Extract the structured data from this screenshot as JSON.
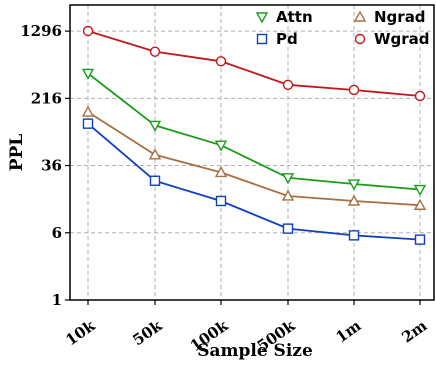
{
  "chart_data": {
    "type": "line",
    "x": [
      "10k",
      "50k",
      "100k",
      "500k",
      "1m",
      "2m"
    ],
    "xlabel": "Sample Size",
    "ylabel": "PPL",
    "yscale": "log",
    "ylim": [
      1,
      2600
    ],
    "yticks": [
      1,
      6,
      36,
      216,
      1296
    ],
    "yticklabels": [
      "1",
      "6",
      "36",
      "216",
      "1296"
    ],
    "grid": true,
    "legend": "top-right",
    "series": [
      {
        "name": "Attn",
        "color": "#1a9c1a",
        "marker": "triangle-down",
        "values": [
          420,
          105,
          62,
          26,
          22,
          19
        ]
      },
      {
        "name": "Ngrad",
        "color": "#a87040",
        "marker": "triangle-up",
        "values": [
          150,
          48,
          30,
          16,
          14,
          12.5
        ]
      },
      {
        "name": "Pd",
        "color": "#1040c0",
        "marker": "square",
        "values": [
          110,
          24,
          14,
          6.7,
          5.6,
          5.0
        ]
      },
      {
        "name": "Wgrad",
        "color": "#c01818",
        "marker": "circle",
        "values": [
          1300,
          750,
          580,
          310,
          270,
          230
        ]
      }
    ]
  }
}
